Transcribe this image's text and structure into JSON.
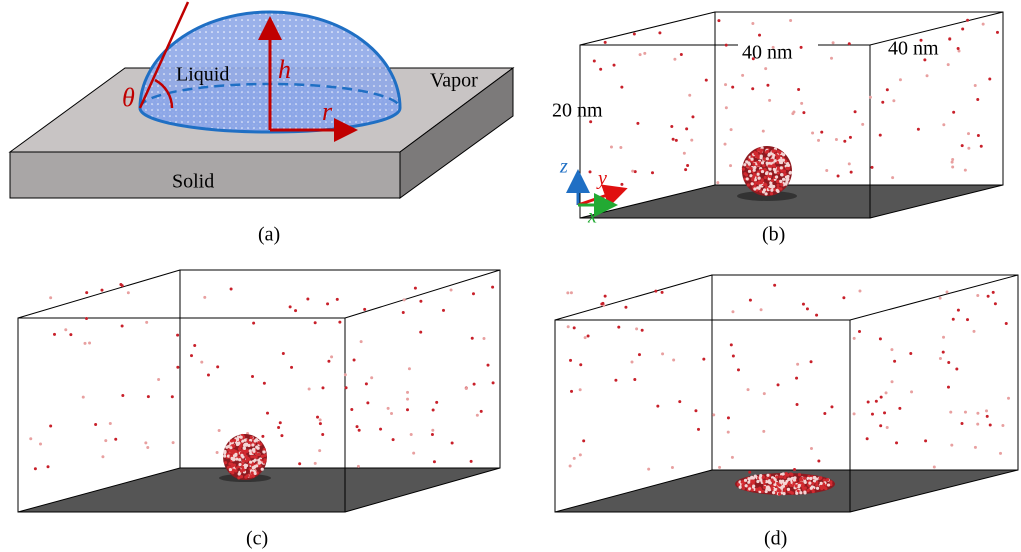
{
  "panel_a": {
    "vapor": "Vapor",
    "liquid": "Liquid",
    "solid": "Solid",
    "theta": "θ",
    "h": "h",
    "r": "r",
    "caption": "(a)"
  },
  "panel_b": {
    "length_x": "40 nm",
    "length_y": "40 nm",
    "height": "20 nm",
    "axis_z": "z",
    "axis_y": "y",
    "axis_x": "x",
    "caption": "(b)"
  },
  "panel_c": {
    "caption": "(c)"
  },
  "panel_d": {
    "caption": "(d)"
  }
}
